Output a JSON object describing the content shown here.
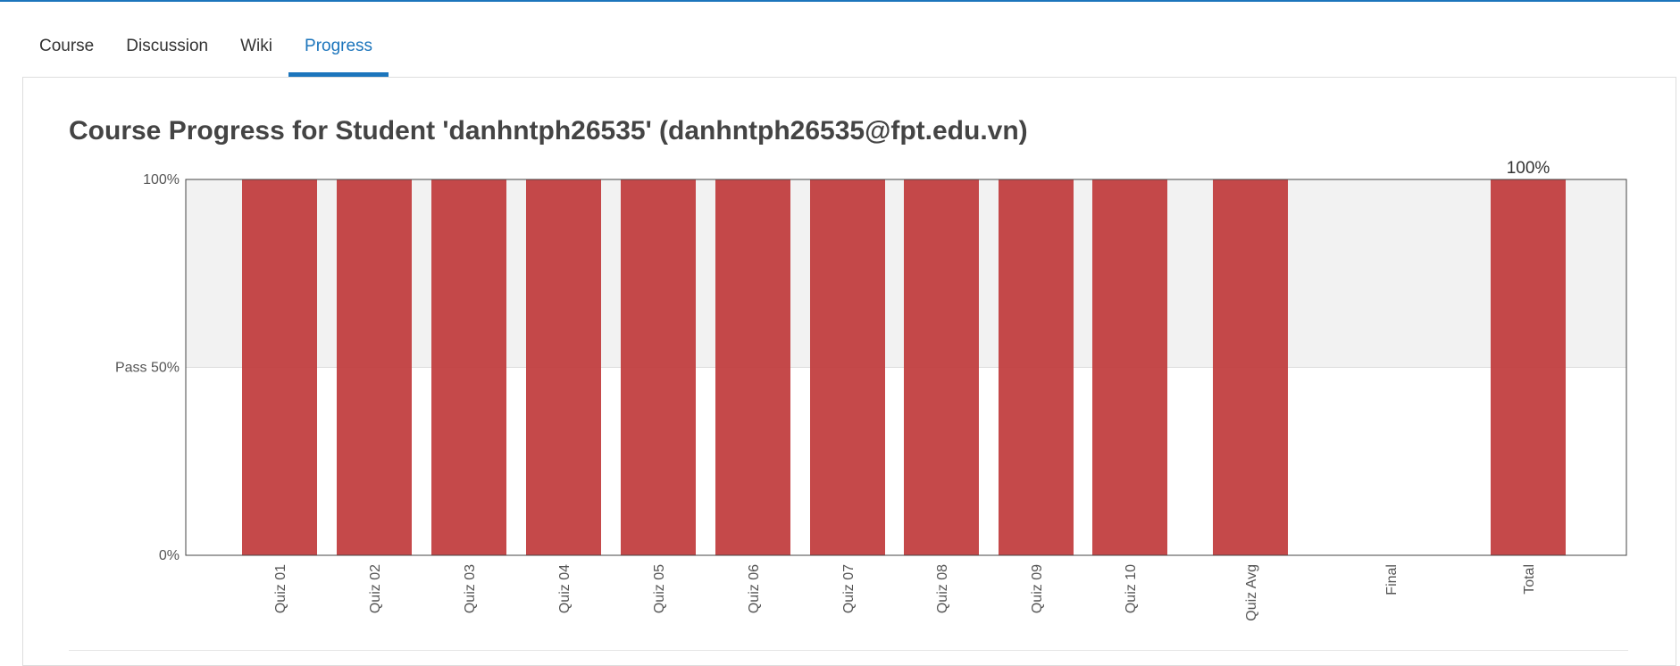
{
  "tabs": [
    {
      "label": "Course",
      "active": false
    },
    {
      "label": "Discussion",
      "active": false
    },
    {
      "label": "Wiki",
      "active": false
    },
    {
      "label": "Progress",
      "active": true
    }
  ],
  "page": {
    "title": "Course Progress for Student 'danhntph26535' (danhntph26535@fpt.edu.vn)"
  },
  "colors": {
    "accent": "#1c75bc",
    "bar": "#c0393b",
    "pass_region": "#f2f2f2"
  },
  "chart_data": {
    "type": "bar",
    "categories": [
      "Quiz 01",
      "Quiz 02",
      "Quiz 03",
      "Quiz 04",
      "Quiz 05",
      "Quiz 06",
      "Quiz 07",
      "Quiz 08",
      "Quiz 09",
      "Quiz 10",
      "Quiz Avg",
      "Final",
      "Total"
    ],
    "values": [
      100,
      100,
      100,
      100,
      100,
      100,
      100,
      100,
      100,
      100,
      100,
      0,
      100
    ],
    "ylim": [
      0,
      100
    ],
    "y_ticks": [
      {
        "value": 0,
        "label": "0%"
      },
      {
        "value": 50,
        "label": "Pass 50%"
      },
      {
        "value": 100,
        "label": "100%"
      }
    ],
    "pass_threshold": 50,
    "data_labels": [
      {
        "category": "Total",
        "label": "100%"
      }
    ]
  }
}
